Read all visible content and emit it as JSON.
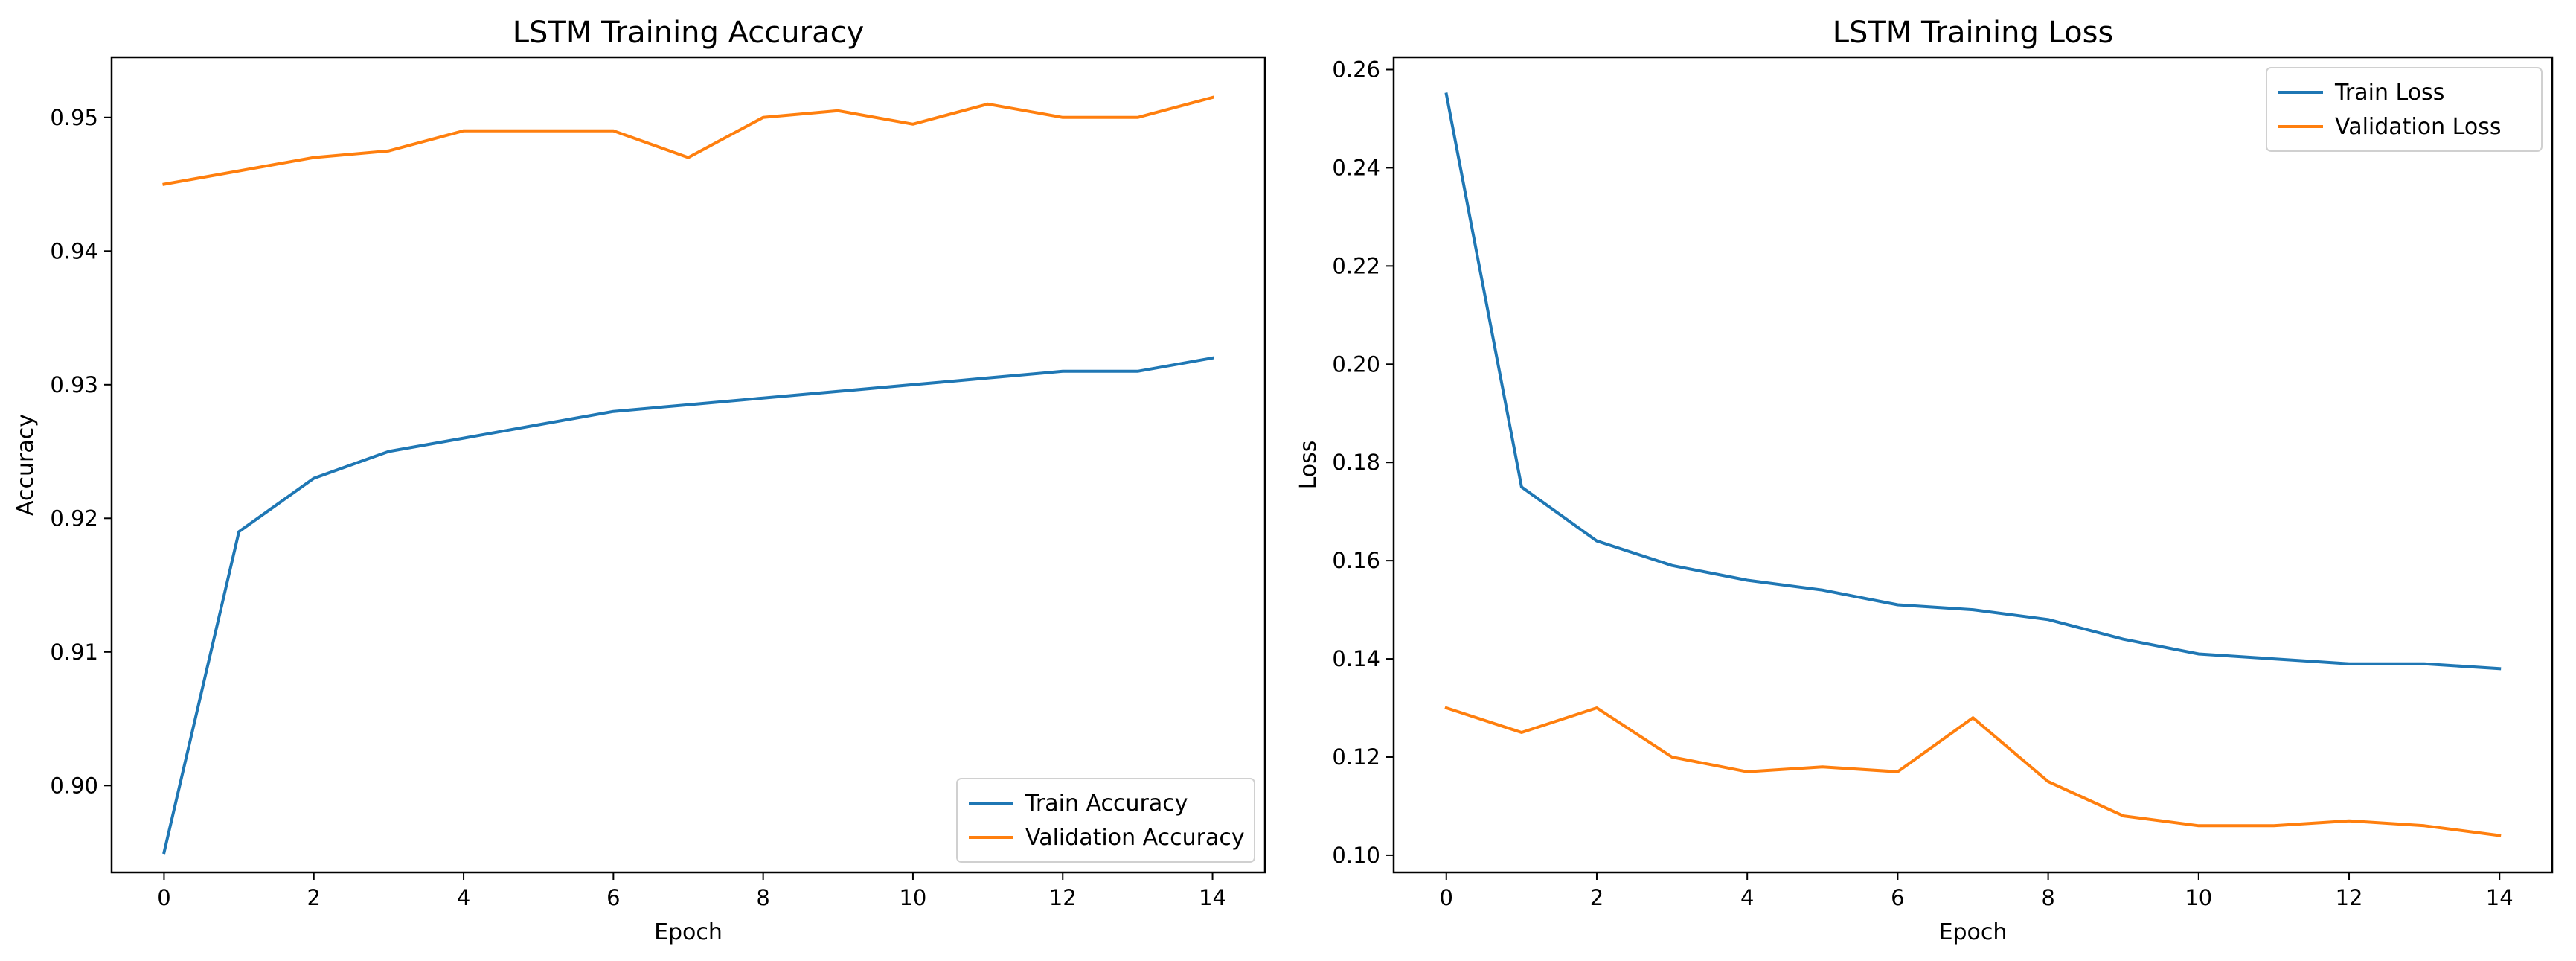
{
  "chart_data": [
    {
      "type": "line",
      "title": "LSTM Training Accuracy",
      "xlabel": "Epoch",
      "ylabel": "Accuracy",
      "xlim": [
        -0.7,
        14.7
      ],
      "ylim": [
        0.8935,
        0.9545
      ],
      "xticks": [
        0,
        2,
        4,
        6,
        8,
        10,
        12,
        14
      ],
      "yticks": [
        0.9,
        0.91,
        0.92,
        0.93,
        0.94,
        0.95
      ],
      "ytick_labels": [
        "0.90",
        "0.91",
        "0.92",
        "0.93",
        "0.94",
        "0.95"
      ],
      "grid": false,
      "legend_position": "lower-right",
      "x": [
        0,
        1,
        2,
        3,
        4,
        5,
        6,
        7,
        8,
        9,
        10,
        11,
        12,
        13,
        14
      ],
      "series": [
        {
          "name": "Train Accuracy",
          "color": "#1f77b4",
          "values": [
            0.895,
            0.919,
            0.923,
            0.925,
            0.926,
            0.927,
            0.928,
            0.9285,
            0.929,
            0.9295,
            0.93,
            0.9305,
            0.931,
            0.931,
            0.932
          ]
        },
        {
          "name": "Validation Accuracy",
          "color": "#ff7f0e",
          "values": [
            0.945,
            0.946,
            0.947,
            0.9475,
            0.949,
            0.949,
            0.949,
            0.947,
            0.95,
            0.9505,
            0.9495,
            0.951,
            0.95,
            0.95,
            0.9515
          ]
        }
      ]
    },
    {
      "type": "line",
      "title": "LSTM Training Loss",
      "xlabel": "Epoch",
      "ylabel": "Loss",
      "xlim": [
        -0.7,
        14.7
      ],
      "ylim": [
        0.0965,
        0.2625
      ],
      "xticks": [
        0,
        2,
        4,
        6,
        8,
        10,
        12,
        14
      ],
      "yticks": [
        0.1,
        0.12,
        0.14,
        0.16,
        0.18,
        0.2,
        0.22,
        0.24,
        0.26
      ],
      "ytick_labels": [
        "0.10",
        "0.12",
        "0.14",
        "0.16",
        "0.18",
        "0.20",
        "0.22",
        "0.24",
        "0.26"
      ],
      "grid": false,
      "legend_position": "upper-right",
      "x": [
        0,
        1,
        2,
        3,
        4,
        5,
        6,
        7,
        8,
        9,
        10,
        11,
        12,
        13,
        14
      ],
      "series": [
        {
          "name": "Train Loss",
          "color": "#1f77b4",
          "values": [
            0.255,
            0.175,
            0.164,
            0.159,
            0.156,
            0.154,
            0.151,
            0.15,
            0.148,
            0.144,
            0.141,
            0.14,
            0.139,
            0.139,
            0.138
          ]
        },
        {
          "name": "Validation Loss",
          "color": "#ff7f0e",
          "values": [
            0.13,
            0.125,
            0.13,
            0.12,
            0.117,
            0.118,
            0.117,
            0.128,
            0.115,
            0.108,
            0.106,
            0.106,
            0.107,
            0.106,
            0.104
          ]
        }
      ]
    }
  ]
}
